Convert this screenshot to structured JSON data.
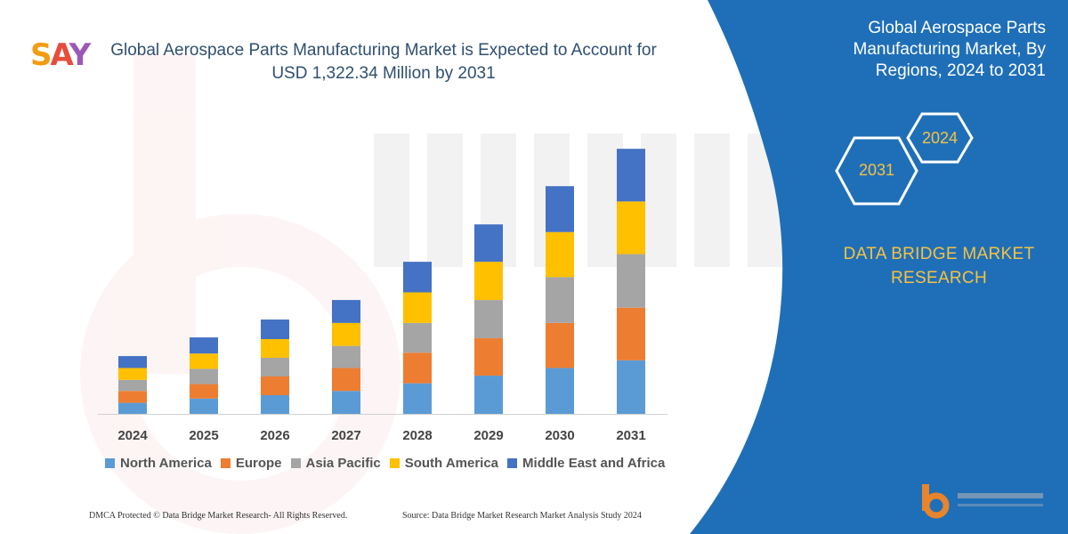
{
  "header": {
    "logo": "SAY",
    "title_line1": "Global Aerospace Parts Manufacturing Market is Expected to Account for",
    "title_line2": "USD 1,322.34 Million by 2031"
  },
  "panel": {
    "title_line1": "Global Aerospace Parts",
    "title_line2": "Manufacturing Market, By",
    "title_line3": "Regions, 2024 to 2031",
    "hex_start": "2024",
    "hex_end": "2031",
    "brand_line1": "DATA BRIDGE MARKET",
    "brand_line2": "RESEARCH",
    "panel_color": "#1f6fb8",
    "accent_color": "#f5c242"
  },
  "footer": {
    "left": "DMCA Protected © Data Bridge Market Research- All Rights Reserved.",
    "right": "Source: Data Bridge Market Research Market Analysis Study 2024"
  },
  "chart_data": {
    "type": "bar",
    "stacked": true,
    "categories": [
      "2024",
      "2025",
      "2026",
      "2027",
      "2028",
      "2029",
      "2030",
      "2031"
    ],
    "series": [
      {
        "name": "North America",
        "color": "#5b9bd5",
        "values": [
          13,
          18,
          22,
          27,
          36,
          45,
          54,
          63
        ]
      },
      {
        "name": "Europe",
        "color": "#ed7d31",
        "values": [
          14,
          17,
          22,
          27,
          36,
          44,
          53,
          62
        ]
      },
      {
        "name": "Asia Pacific",
        "color": "#a5a5a5",
        "values": [
          13,
          18,
          22,
          26,
          35,
          45,
          54,
          63
        ]
      },
      {
        "name": "South America",
        "color": "#ffc000",
        "values": [
          14,
          18,
          22,
          27,
          36,
          45,
          53,
          62
        ]
      },
      {
        "name": "Middle East and Africa",
        "color": "#4472c4",
        "values": [
          14,
          19,
          23,
          27,
          36,
          44,
          54,
          62
        ]
      }
    ],
    "ylim": [
      0,
      330
    ],
    "grid": false,
    "legend": "bottom"
  }
}
